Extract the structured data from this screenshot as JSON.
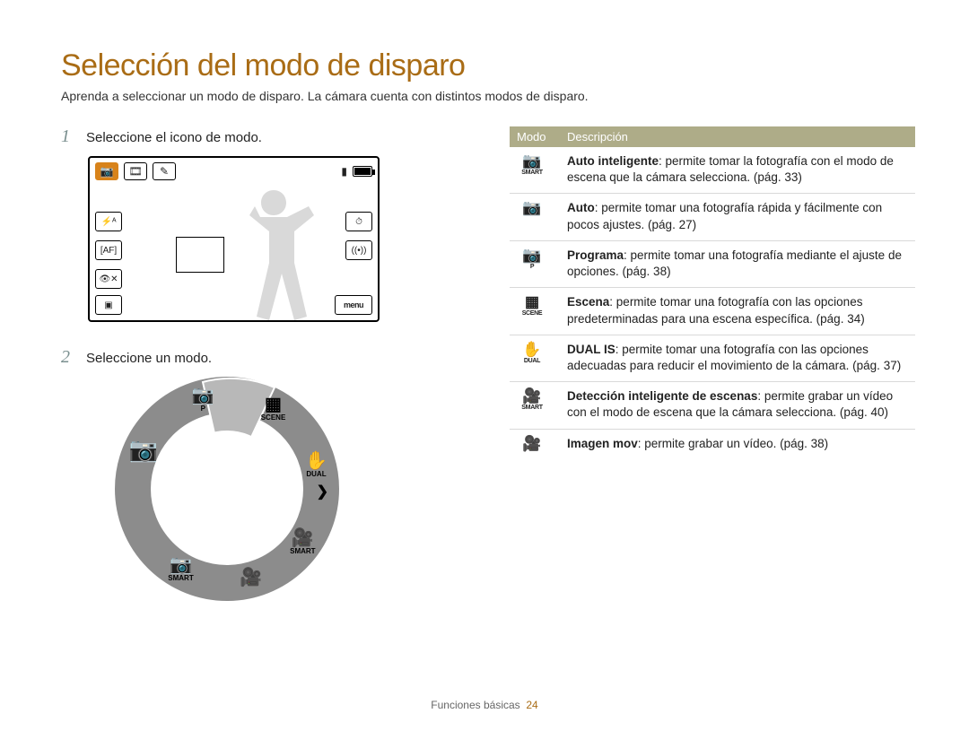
{
  "page": {
    "title": "Selección del modo de disparo",
    "intro": "Aprenda a seleccionar un modo de disparo. La cámara cuenta con distintos modos de disparo.",
    "footer_label": "Funciones básicas",
    "footer_page": "24",
    "colors": {
      "title": "#a96c15",
      "step_number": "#7a8f8f",
      "table_header_bg": "#aeac88",
      "lcd_active_bg": "#d8831b"
    }
  },
  "steps": {
    "s1_num": "1",
    "s1_text": "Seleccione el icono de modo.",
    "s2_num": "2",
    "s2_text": "Seleccione un modo."
  },
  "lcd": {
    "top_icons": [
      "camera",
      "film",
      "brush"
    ],
    "top_active_index": 0,
    "left_icons": [
      "flash-auto",
      "af-bracket",
      "eye-off"
    ],
    "right_icons": [
      "timer",
      "wifi"
    ],
    "bottom_left": "gallery",
    "bottom_right_label": "menu",
    "battery_bars": 3
  },
  "dial": {
    "ring_color": "#8c8c8c",
    "selected_fill": "#b3b3b3",
    "icons": [
      {
        "angle": -65,
        "glyph": "📷",
        "sub": "",
        "selected": true
      },
      {
        "angle": -15,
        "glyph": "📷",
        "sub": "P"
      },
      {
        "angle": 30,
        "glyph": "▦",
        "sub": "SCENE"
      },
      {
        "angle": 75,
        "glyph": "✋",
        "sub": "DUAL"
      },
      {
        "angle": 125,
        "glyph": "🎥",
        "sub": "SMART"
      },
      {
        "angle": 165,
        "glyph": "🎥",
        "sub": ""
      },
      {
        "angle": 210,
        "glyph": "📷",
        "sub": "SMART"
      }
    ],
    "arrow_right": "❯"
  },
  "table": {
    "h1": "Modo",
    "h2": "Descripción",
    "rows": [
      {
        "icon_glyph": "📷",
        "icon_sub": "SMART",
        "bold": "Auto inteligente",
        "rest": ": permite tomar la fotografía con el modo de escena que la cámara selecciona. (pág. 33)"
      },
      {
        "icon_glyph": "📷",
        "icon_sub": "",
        "bold": "Auto",
        "rest": ": permite tomar una fotografía rápida y fácilmente con pocos ajustes. (pág. 27)"
      },
      {
        "icon_glyph": "📷",
        "icon_sub": "P",
        "bold": "Programa",
        "rest": ": permite tomar una fotografía mediante el ajuste de opciones. (pág. 38)"
      },
      {
        "icon_glyph": "▦",
        "icon_sub": "SCENE",
        "bold": "Escena",
        "rest": ": permite tomar una fotografía con las opciones predeterminadas para una escena específica. (pág. 34)"
      },
      {
        "icon_glyph": "✋",
        "icon_sub": "DUAL",
        "bold": "DUAL IS",
        "rest": ": permite tomar una fotografía con las opciones adecuadas para reducir el movimiento de la cámara. (pág. 37)"
      },
      {
        "icon_glyph": "🎥",
        "icon_sub": "SMART",
        "bold": "Detección inteligente de escenas",
        "rest": ": permite grabar un vídeo con el modo de escena que la cámara selecciona. (pág. 40)"
      },
      {
        "icon_glyph": "🎥",
        "icon_sub": "",
        "bold": "Imagen mov",
        "rest": ": permite grabar un vídeo. (pág. 38)"
      }
    ]
  }
}
